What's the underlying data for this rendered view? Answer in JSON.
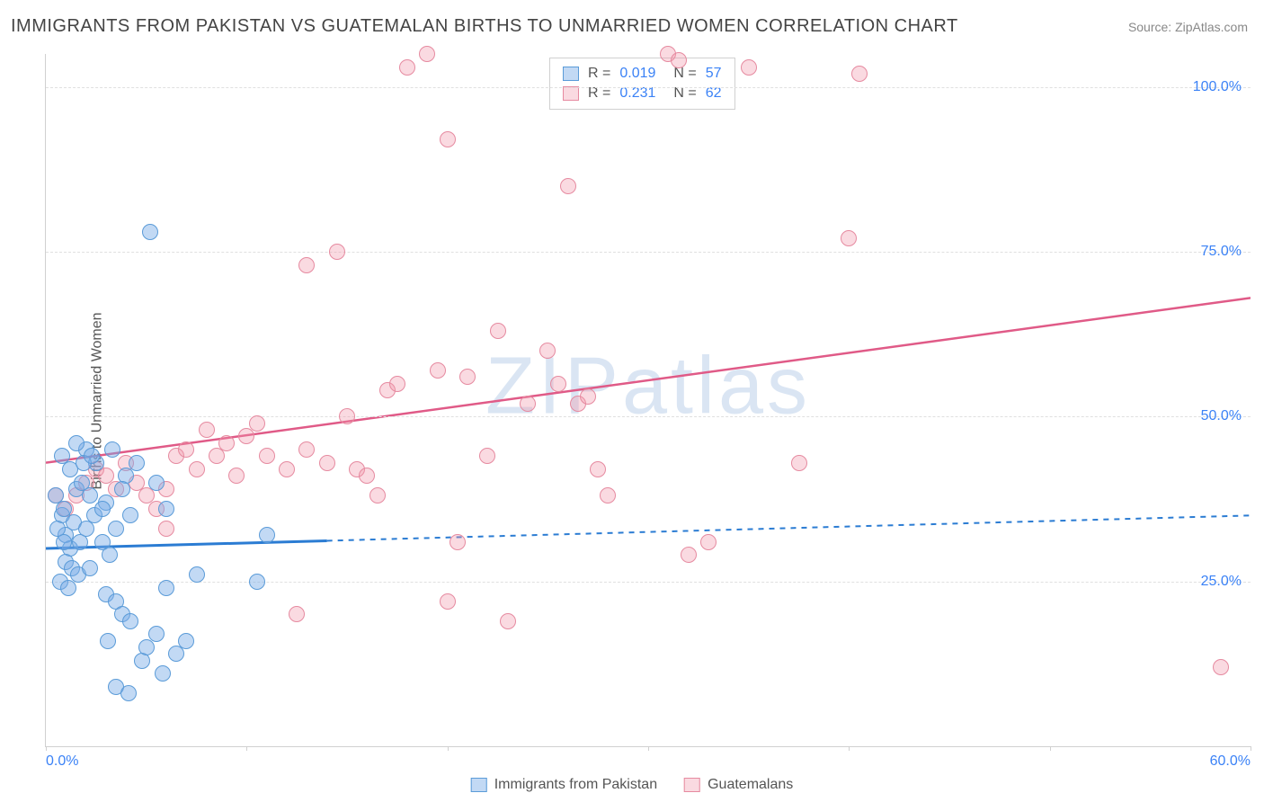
{
  "title": "IMMIGRANTS FROM PAKISTAN VS GUATEMALAN BIRTHS TO UNMARRIED WOMEN CORRELATION CHART",
  "source": "Source: ZipAtlas.com",
  "y_axis_label": "Births to Unmarried Women",
  "watermark": "ZIPatlas",
  "colors": {
    "series_a_fill": "rgba(120, 170, 230, 0.45)",
    "series_a_stroke": "#5a9bd8",
    "series_a_line": "#2b7cd3",
    "series_b_fill": "rgba(240, 150, 170, 0.35)",
    "series_b_stroke": "#e68aa0",
    "series_b_line": "#e05a87",
    "grid": "#e0e0e0",
    "tick_text": "#3b82f6",
    "title_text": "#444444",
    "watermark": "rgba(150, 180, 220, 0.35)"
  },
  "chart": {
    "type": "scatter",
    "xlim": [
      0,
      60
    ],
    "ylim": [
      0,
      105
    ],
    "y_ticks": [
      25,
      50,
      75,
      100
    ],
    "y_tick_labels": [
      "25.0%",
      "50.0%",
      "75.0%",
      "100.0%"
    ],
    "x_ticks": [
      0,
      10,
      20,
      30,
      40,
      50,
      60
    ],
    "x_tick_labels": {
      "0": "0.0%",
      "60": "60.0%"
    },
    "marker_radius": 9,
    "marker_opacity": 0.45
  },
  "stats": {
    "series_a": {
      "R": "0.019",
      "N": "57"
    },
    "series_b": {
      "R": "0.231",
      "N": "62"
    }
  },
  "legend": {
    "series_a": "Immigrants from Pakistan",
    "series_b": "Guatemalans"
  },
  "trend_lines": {
    "series_a": {
      "x1": 0,
      "y1": 30,
      "x2": 60,
      "y2": 35,
      "solid_until_x": 14
    },
    "series_b": {
      "x1": 0,
      "y1": 43,
      "x2": 60,
      "y2": 68,
      "solid_until_x": 60
    }
  },
  "series_a_points": [
    [
      0.5,
      38
    ],
    [
      0.8,
      35
    ],
    [
      1.0,
      32
    ],
    [
      1.2,
      30
    ],
    [
      0.6,
      33
    ],
    [
      0.9,
      36
    ],
    [
      1.5,
      39
    ],
    [
      1.2,
      42
    ],
    [
      0.8,
      44
    ],
    [
      2.0,
      45
    ],
    [
      2.5,
      43
    ],
    [
      1.8,
      40
    ],
    [
      1.0,
      28
    ],
    [
      1.3,
      27
    ],
    [
      0.7,
      25
    ],
    [
      1.1,
      24
    ],
    [
      1.6,
      26
    ],
    [
      2.2,
      27
    ],
    [
      2.8,
      31
    ],
    [
      3.2,
      29
    ],
    [
      3.5,
      33
    ],
    [
      3.0,
      37
    ],
    [
      2.2,
      38
    ],
    [
      1.4,
      34
    ],
    [
      0.9,
      31
    ],
    [
      1.7,
      31
    ],
    [
      2.0,
      33
    ],
    [
      2.4,
      35
    ],
    [
      2.8,
      36
    ],
    [
      1.9,
      43
    ],
    [
      2.3,
      44
    ],
    [
      1.5,
      46
    ],
    [
      3.3,
      45
    ],
    [
      4.0,
      41
    ],
    [
      4.5,
      43
    ],
    [
      3.8,
      39
    ],
    [
      4.2,
      35
    ],
    [
      3.0,
      23
    ],
    [
      3.5,
      22
    ],
    [
      3.8,
      20
    ],
    [
      4.2,
      19
    ],
    [
      3.1,
      16
    ],
    [
      4.8,
      13
    ],
    [
      5.5,
      17
    ],
    [
      5.0,
      15
    ],
    [
      6.5,
      14
    ],
    [
      5.8,
      11
    ],
    [
      3.5,
      9
    ],
    [
      4.1,
      8
    ],
    [
      6.0,
      24
    ],
    [
      7.5,
      26
    ],
    [
      10.5,
      25
    ],
    [
      11.0,
      32
    ],
    [
      6.0,
      36
    ],
    [
      5.5,
      40
    ],
    [
      5.2,
      78
    ],
    [
      7.0,
      16
    ]
  ],
  "series_b_points": [
    [
      0.5,
      38
    ],
    [
      1.0,
      36
    ],
    [
      1.5,
      38
    ],
    [
      2.0,
      40
    ],
    [
      2.5,
      42
    ],
    [
      3.0,
      41
    ],
    [
      3.5,
      39
    ],
    [
      4.0,
      43
    ],
    [
      4.5,
      40
    ],
    [
      5.0,
      38
    ],
    [
      5.5,
      36
    ],
    [
      6.0,
      39
    ],
    [
      6.5,
      44
    ],
    [
      7.0,
      45
    ],
    [
      7.5,
      42
    ],
    [
      8.0,
      48
    ],
    [
      8.5,
      44
    ],
    [
      9.0,
      46
    ],
    [
      9.5,
      41
    ],
    [
      10.0,
      47
    ],
    [
      10.5,
      49
    ],
    [
      11.0,
      44
    ],
    [
      12.0,
      42
    ],
    [
      13.0,
      45
    ],
    [
      14.0,
      43
    ],
    [
      14.5,
      75
    ],
    [
      13.0,
      73
    ],
    [
      15.0,
      50
    ],
    [
      15.5,
      42
    ],
    [
      16.0,
      41
    ],
    [
      17.0,
      54
    ],
    [
      17.5,
      55
    ],
    [
      18.0,
      103
    ],
    [
      19.0,
      105
    ],
    [
      19.5,
      57
    ],
    [
      20.0,
      22
    ],
    [
      20.5,
      31
    ],
    [
      21.0,
      56
    ],
    [
      22.0,
      44
    ],
    [
      22.5,
      63
    ],
    [
      23.0,
      19
    ],
    [
      20.0,
      92
    ],
    [
      24.0,
      52
    ],
    [
      25.0,
      60
    ],
    [
      25.5,
      55
    ],
    [
      26.0,
      85
    ],
    [
      26.5,
      52
    ],
    [
      27.0,
      53
    ],
    [
      27.5,
      42
    ],
    [
      28.0,
      38
    ],
    [
      31.0,
      105
    ],
    [
      31.5,
      104
    ],
    [
      32.0,
      29
    ],
    [
      33.0,
      31
    ],
    [
      35.0,
      103
    ],
    [
      37.5,
      43
    ],
    [
      40.0,
      77
    ],
    [
      40.5,
      102
    ],
    [
      58.5,
      12
    ],
    [
      16.5,
      38
    ],
    [
      12.5,
      20
    ],
    [
      6.0,
      33
    ]
  ]
}
